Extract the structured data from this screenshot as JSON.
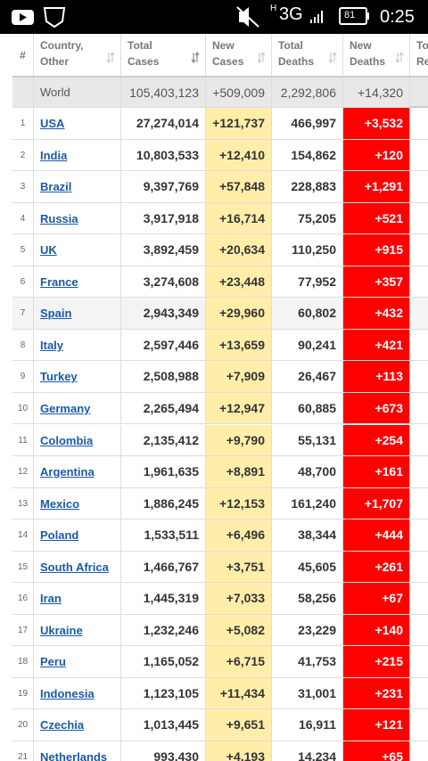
{
  "status_bar": {
    "network_small": "H",
    "network": "3G",
    "battery": "81",
    "time": "0:25"
  },
  "table": {
    "headers": [
      [
        "#"
      ],
      [
        "Country,",
        "Other"
      ],
      [
        "Total",
        "Cases"
      ],
      [
        "New",
        "Cases"
      ],
      [
        "Total",
        "Deaths"
      ],
      [
        "New",
        "Deaths"
      ],
      [
        "Total",
        "Recovered"
      ]
    ],
    "world": [
      "World",
      "105,403,123",
      "+509,009",
      "2,292,806",
      "+14,320"
    ],
    "rows": [
      [
        "1",
        "USA",
        "27,274,014",
        "+121,737",
        "466,997",
        "+3,532"
      ],
      [
        "2",
        "India",
        "10,803,533",
        "+12,410",
        "154,862",
        "+120"
      ],
      [
        "3",
        "Brazil",
        "9,397,769",
        "+57,848",
        "228,883",
        "+1,291"
      ],
      [
        "4",
        "Russia",
        "3,917,918",
        "+16,714",
        "75,205",
        "+521"
      ],
      [
        "5",
        "UK",
        "3,892,459",
        "+20,634",
        "110,250",
        "+915"
      ],
      [
        "6",
        "France",
        "3,274,608",
        "+23,448",
        "77,952",
        "+357"
      ],
      [
        "7",
        "Spain",
        "2,943,349",
        "+29,960",
        "60,802",
        "+432"
      ],
      [
        "8",
        "Italy",
        "2,597,446",
        "+13,659",
        "90,241",
        "+421"
      ],
      [
        "9",
        "Turkey",
        "2,508,988",
        "+7,909",
        "26,467",
        "+113"
      ],
      [
        "10",
        "Germany",
        "2,265,494",
        "+12,947",
        "60,885",
        "+673"
      ],
      [
        "11",
        "Colombia",
        "2,135,412",
        "+9,790",
        "55,131",
        "+254"
      ],
      [
        "12",
        "Argentina",
        "1,961,635",
        "+8,891",
        "48,700",
        "+161"
      ],
      [
        "13",
        "Mexico",
        "1,886,245",
        "+12,153",
        "161,240",
        "+1,707"
      ],
      [
        "14",
        "Poland",
        "1,533,511",
        "+6,496",
        "38,344",
        "+444"
      ],
      [
        "15",
        "South Africa",
        "1,466,767",
        "+3,751",
        "45,605",
        "+261"
      ],
      [
        "16",
        "Iran",
        "1,445,319",
        "+7,033",
        "58,256",
        "+67"
      ],
      [
        "17",
        "Ukraine",
        "1,232,246",
        "+5,082",
        "23,229",
        "+140"
      ],
      [
        "18",
        "Peru",
        "1,165,052",
        "+6,715",
        "41,753",
        "+215"
      ],
      [
        "19",
        "Indonesia",
        "1,123,105",
        "+11,434",
        "31,001",
        "+231"
      ],
      [
        "20",
        "Czechia",
        "1,013,445",
        "+9,651",
        "16,911",
        "+121"
      ],
      [
        "21",
        "Netherlands",
        "993,430",
        "+4,193",
        "14,234",
        "+65"
      ]
    ]
  }
}
